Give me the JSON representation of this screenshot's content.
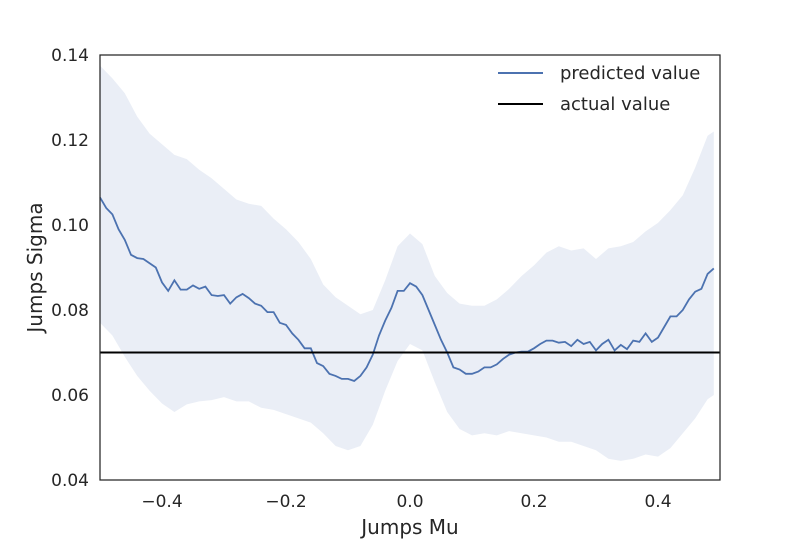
{
  "chart_data": {
    "type": "line",
    "title": "",
    "xlabel": "Jumps Mu",
    "ylabel": "Jumps Sigma",
    "xlim": [
      -0.5,
      0.5
    ],
    "ylim": [
      0.04,
      0.14
    ],
    "x_ticks": [
      -0.4,
      -0.2,
      0.0,
      0.2,
      0.4
    ],
    "x_tick_labels": [
      "−0.4",
      "−0.2",
      "0.0",
      "0.2",
      "0.4"
    ],
    "y_ticks": [
      0.04,
      0.06,
      0.08,
      0.1,
      0.12,
      0.14
    ],
    "y_tick_labels": [
      "0.04",
      "0.06",
      "0.08",
      "0.10",
      "0.12",
      "0.14"
    ],
    "grid": false,
    "legend_position": "top-right",
    "series": [
      {
        "name": "predicted value",
        "color": "#4c72b0",
        "x": [
          -0.5,
          -0.49,
          -0.48,
          -0.47,
          -0.46,
          -0.45,
          -0.44,
          -0.43,
          -0.42,
          -0.41,
          -0.4,
          -0.39,
          -0.38,
          -0.37,
          -0.36,
          -0.35,
          -0.34,
          -0.33,
          -0.32,
          -0.31,
          -0.3,
          -0.29,
          -0.28,
          -0.27,
          -0.26,
          -0.25,
          -0.24,
          -0.23,
          -0.22,
          -0.21,
          -0.2,
          -0.19,
          -0.18,
          -0.17,
          -0.16,
          -0.15,
          -0.14,
          -0.13,
          -0.12,
          -0.11,
          -0.1,
          -0.09,
          -0.08,
          -0.07,
          -0.06,
          -0.05,
          -0.04,
          -0.03,
          -0.02,
          -0.01,
          0.0,
          0.01,
          0.02,
          0.03,
          0.04,
          0.05,
          0.06,
          0.07,
          0.08,
          0.09,
          0.1,
          0.11,
          0.12,
          0.13,
          0.14,
          0.15,
          0.16,
          0.17,
          0.18,
          0.19,
          0.2,
          0.21,
          0.22,
          0.23,
          0.24,
          0.25,
          0.26,
          0.27,
          0.28,
          0.29,
          0.3,
          0.31,
          0.32,
          0.33,
          0.34,
          0.35,
          0.36,
          0.37,
          0.38,
          0.39,
          0.4,
          0.41,
          0.42,
          0.43,
          0.44,
          0.45,
          0.46,
          0.47,
          0.48,
          0.49
        ],
        "y": [
          0.1065,
          0.104,
          0.1025,
          0.099,
          0.0965,
          0.093,
          0.0922,
          0.092,
          0.091,
          0.09,
          0.0865,
          0.0845,
          0.087,
          0.0848,
          0.0848,
          0.0858,
          0.085,
          0.0855,
          0.0835,
          0.0833,
          0.0835,
          0.0815,
          0.083,
          0.0838,
          0.0828,
          0.0815,
          0.081,
          0.0795,
          0.0795,
          0.077,
          0.0765,
          0.0745,
          0.073,
          0.071,
          0.071,
          0.0675,
          0.0668,
          0.065,
          0.0645,
          0.0638,
          0.0638,
          0.0633,
          0.0645,
          0.0665,
          0.0695,
          0.074,
          0.0775,
          0.0805,
          0.0845,
          0.0845,
          0.0863,
          0.0855,
          0.0835,
          0.08,
          0.0765,
          0.073,
          0.07,
          0.0665,
          0.066,
          0.065,
          0.065,
          0.0655,
          0.0665,
          0.0665,
          0.0672,
          0.0685,
          0.0695,
          0.07,
          0.0702,
          0.0702,
          0.071,
          0.072,
          0.0728,
          0.0728,
          0.0723,
          0.0725,
          0.0715,
          0.073,
          0.072,
          0.0725,
          0.0705,
          0.072,
          0.073,
          0.0705,
          0.0718,
          0.0708,
          0.0728,
          0.0725,
          0.0745,
          0.0725,
          0.0735,
          0.076,
          0.0785,
          0.0785,
          0.08,
          0.0825,
          0.0843,
          0.085,
          0.0885,
          0.0898
        ]
      },
      {
        "name": "actual value",
        "color": "#000000",
        "x": [
          -0.5,
          0.5
        ],
        "y": [
          0.07,
          0.07
        ]
      }
    ],
    "confidence_band": {
      "color": "#eaeef6",
      "x": [
        -0.5,
        -0.48,
        -0.46,
        -0.44,
        -0.42,
        -0.4,
        -0.38,
        -0.36,
        -0.34,
        -0.32,
        -0.3,
        -0.28,
        -0.26,
        -0.24,
        -0.22,
        -0.2,
        -0.18,
        -0.16,
        -0.14,
        -0.12,
        -0.1,
        -0.08,
        -0.06,
        -0.04,
        -0.02,
        0.0,
        0.02,
        0.04,
        0.06,
        0.08,
        0.1,
        0.12,
        0.14,
        0.16,
        0.18,
        0.2,
        0.22,
        0.24,
        0.26,
        0.28,
        0.3,
        0.32,
        0.34,
        0.36,
        0.38,
        0.4,
        0.42,
        0.44,
        0.46,
        0.48,
        0.49
      ],
      "upper": [
        0.1375,
        0.1345,
        0.131,
        0.1255,
        0.1215,
        0.119,
        0.1165,
        0.1155,
        0.113,
        0.111,
        0.1085,
        0.106,
        0.105,
        0.1045,
        0.1015,
        0.099,
        0.096,
        0.092,
        0.086,
        0.083,
        0.081,
        0.079,
        0.08,
        0.087,
        0.095,
        0.098,
        0.0955,
        0.088,
        0.084,
        0.0815,
        0.081,
        0.081,
        0.0825,
        0.085,
        0.088,
        0.0905,
        0.0935,
        0.095,
        0.094,
        0.0945,
        0.092,
        0.0945,
        0.095,
        0.096,
        0.0985,
        0.1005,
        0.1035,
        0.107,
        0.1135,
        0.121,
        0.122
      ],
      "lower": [
        0.077,
        0.074,
        0.069,
        0.0645,
        0.061,
        0.058,
        0.056,
        0.0578,
        0.0585,
        0.0588,
        0.0595,
        0.0585,
        0.0585,
        0.057,
        0.0565,
        0.0555,
        0.0545,
        0.0535,
        0.051,
        0.048,
        0.047,
        0.048,
        0.053,
        0.061,
        0.068,
        0.072,
        0.0705,
        0.063,
        0.056,
        0.052,
        0.0505,
        0.051,
        0.0505,
        0.0515,
        0.051,
        0.0505,
        0.05,
        0.049,
        0.049,
        0.048,
        0.047,
        0.045,
        0.0445,
        0.045,
        0.046,
        0.0455,
        0.0475,
        0.051,
        0.0545,
        0.059,
        0.06
      ]
    }
  }
}
